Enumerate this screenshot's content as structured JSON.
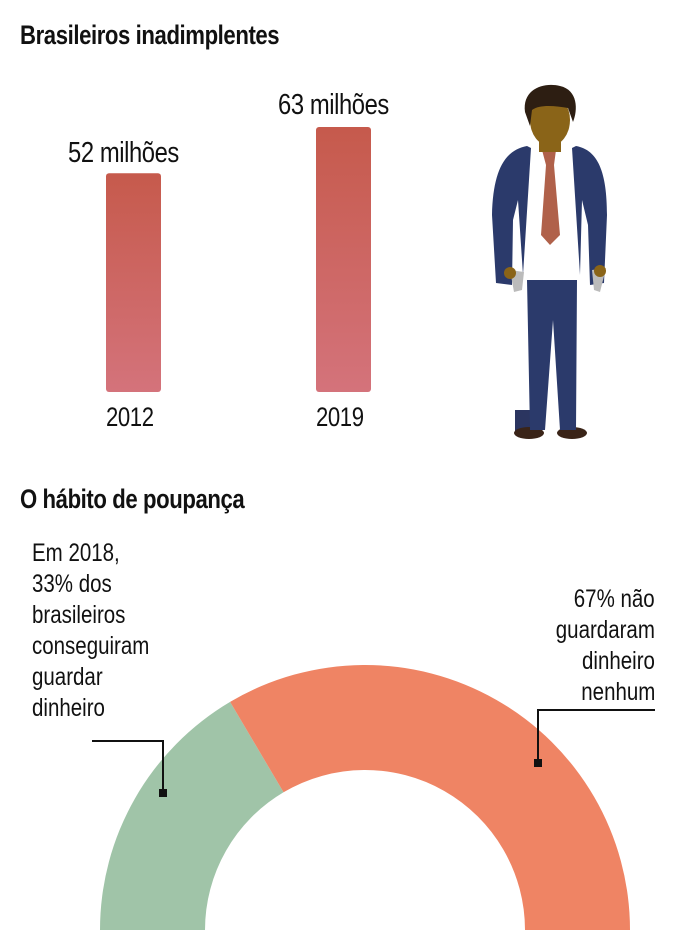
{
  "sections": {
    "debtors_title": "Brasileiros inadimplentes",
    "savings_title": "O hábito de poupança"
  },
  "chart_data": [
    {
      "type": "bar",
      "title": "Brasileiros inadimplentes",
      "categories": [
        "2012",
        "2019"
      ],
      "values": [
        52,
        63
      ],
      "value_labels": [
        "52 milhões",
        "63 milhões"
      ],
      "unit": "milhões",
      "ylim": [
        0,
        63
      ],
      "color_top": "#c65a4c",
      "color_bottom": "#d4737b"
    },
    {
      "type": "pie",
      "variant": "half-donut",
      "title": "O hábito de poupança",
      "slices": [
        {
          "name": "guardaram",
          "value": 33,
          "color": "#a0c4a8",
          "label_lines": [
            "Em 2018,",
            "33% dos",
            "brasileiros",
            "conseguiram",
            "guardar",
            "dinheiro"
          ]
        },
        {
          "name": "não guardaram",
          "value": 67,
          "color": "#ef8464",
          "label_lines": [
            "67% não",
            "guardaram",
            "dinheiro",
            "nenhum"
          ]
        }
      ]
    }
  ],
  "illustration": {
    "icon": "man-empty-pockets-icon"
  }
}
